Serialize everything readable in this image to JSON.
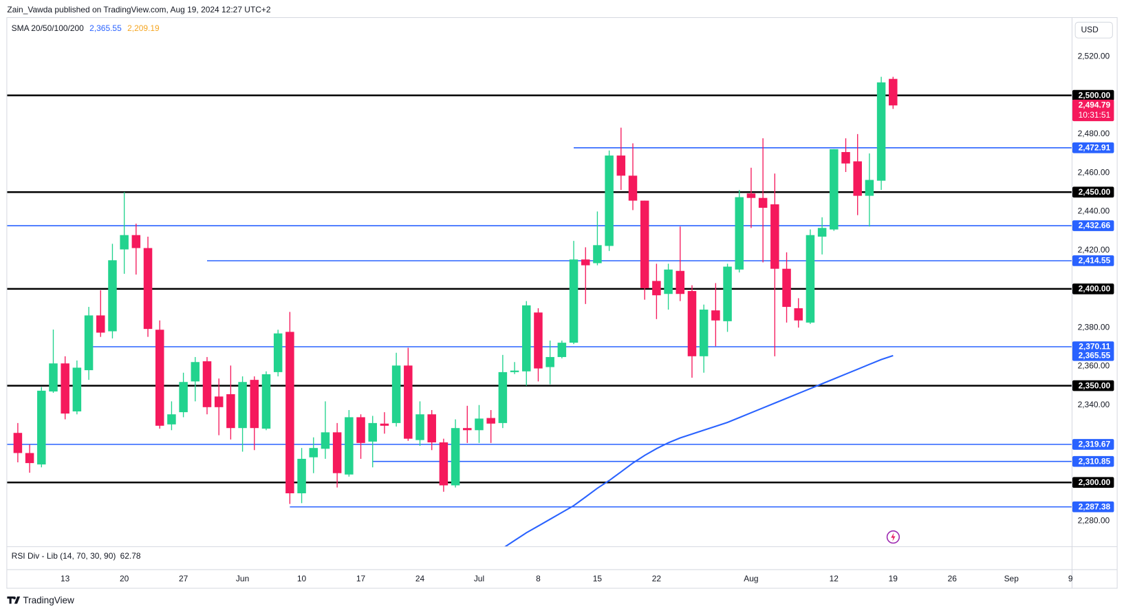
{
  "header": "Zain_Vawda published on TradingView.com, Aug 19, 2024 12:27 UTC+2",
  "footer": "TradingView",
  "chart_data": {
    "type": "candlestick",
    "currency": "USD",
    "up_color": "#22d38e",
    "down_color": "#f5195c",
    "open": [
      2325.6,
      2315.2,
      2309.3,
      2347,
      2361.5,
      2336.7,
      2358,
      2386.3,
      2378.1,
      2420.4,
      2427.8,
      2421.1,
      2378.9,
      2330,
      2336.3,
      2352.2,
      2362.6,
      2344.4,
      2345.6,
      2328.1,
      2353,
      2327.8,
      2357,
      2377.8,
      2294.4,
      2313,
      2317.4,
      2325.9,
      2304.1,
      2333.7,
      2321.1,
      2330.4,
      2330.7,
      2360.4,
      2321.9,
      2335.2,
      2320.7,
      2298.5,
      2328.1,
      2327,
      2333.3,
      2330.7,
      2357,
      2357.4,
      2387.8,
      2359.6,
      2364.8,
      2372.2,
      2415.2,
      2413.3,
      2422.2,
      2468.9,
      2458.5,
      2445.6,
      2404.1,
      2397.4,
      2409.3,
      2398.9,
      2365.2,
      2388.9,
      2383.3,
      2410,
      2449.3,
      2447,
      2443.7,
      2410.4,
      2390,
      2382.6,
      2427,
      2430.7,
      2470.7,
      2465.9,
      2448.1,
      2455.9,
      2508.5
    ],
    "high": [
      2330.7,
      2319.6,
      2349.3,
      2379,
      2365.2,
      2363,
      2390.7,
      2399.3,
      2423.3,
      2450,
      2433.7,
      2427,
      2383.7,
      2341.9,
      2356.7,
      2364.8,
      2364.8,
      2353.7,
      2360.4,
      2354.8,
      2354.8,
      2357.4,
      2378.9,
      2388.1,
      2317.8,
      2323.3,
      2341.9,
      2330.7,
      2337.4,
      2335.2,
      2334.4,
      2336.3,
      2367,
      2369.6,
      2341.9,
      2337.4,
      2322.6,
      2332.6,
      2339.6,
      2340,
      2337.4,
      2365.9,
      2362.2,
      2393.7,
      2390,
      2373.3,
      2373.3,
      2424.8,
      2421.5,
      2440,
      2471.5,
      2483.3,
      2475.2,
      2445.6,
      2413,
      2413,
      2432.2,
      2401.9,
      2391.9,
      2403,
      2413,
      2451.1,
      2462.6,
      2477.8,
      2459.6,
      2418.9,
      2395.2,
      2430.7,
      2437,
      2472.2,
      2477.8,
      2480,
      2470,
      2509.6,
      2509.6
    ],
    "low": [
      2310.4,
      2305,
      2307.8,
      2346.3,
      2332.6,
      2335.2,
      2353,
      2375.2,
      2374.4,
      2407.8,
      2407.4,
      2375.2,
      2327.8,
      2327,
      2333.7,
      2341.9,
      2335.2,
      2324.4,
      2322.2,
      2315.9,
      2316.7,
      2327,
      2354.8,
      2288.9,
      2289.3,
      2304.8,
      2312.2,
      2297.4,
      2303,
      2312.2,
      2307.8,
      2325.2,
      2328.9,
      2321.5,
      2318.9,
      2316.7,
      2295.2,
      2297.4,
      2320.4,
      2320.4,
      2320.4,
      2328.1,
      2356,
      2350,
      2352.2,
      2350.7,
      2364.1,
      2371.5,
      2392.2,
      2412.2,
      2419.6,
      2451.1,
      2440.7,
      2394.4,
      2384.4,
      2389.3,
      2393.7,
      2354.1,
      2356.7,
      2370.4,
      2377.8,
      2408.5,
      2431.5,
      2413.7,
      2365.2,
      2382.6,
      2380,
      2381.9,
      2417.8,
      2430,
      2460.4,
      2438.1,
      2432.2,
      2451.1,
      2493
    ],
    "close": [
      2315.2,
      2310,
      2347.4,
      2361.5,
      2335.6,
      2359.3,
      2386.3,
      2377.4,
      2414.8,
      2427.8,
      2421.1,
      2379.3,
      2329.3,
      2335.2,
      2351.9,
      2362.2,
      2338.9,
      2338.9,
      2328.1,
      2351.9,
      2328.1,
      2355.9,
      2377,
      2294.4,
      2312.2,
      2317.8,
      2325.9,
      2304.8,
      2333.7,
      2320.4,
      2330.7,
      2329.3,
      2360.4,
      2322.6,
      2335.2,
      2320.7,
      2298.5,
      2328.1,
      2327,
      2333,
      2330.4,
      2357,
      2357.8,
      2391.5,
      2358.9,
      2364.8,
      2372.2,
      2415.2,
      2412.2,
      2422.6,
      2468.9,
      2458.5,
      2445.6,
      2400.4,
      2396.7,
      2410,
      2397.4,
      2365.2,
      2389.3,
      2383.7,
      2411.5,
      2447.4,
      2447,
      2441.9,
      2410.4,
      2390.7,
      2383.7,
      2427.8,
      2431.5,
      2472.2,
      2464.8,
      2448.1,
      2456.3,
      2506.7,
      2494.79
    ],
    "xlim": [
      -0.9,
      89.1
    ],
    "xticks": [
      {
        "value": 4,
        "label": "13"
      },
      {
        "value": 9,
        "label": "20"
      },
      {
        "value": 14,
        "label": "27"
      },
      {
        "value": 19,
        "label": "Jun"
      },
      {
        "value": 24,
        "label": "10"
      },
      {
        "value": 29,
        "label": "17"
      },
      {
        "value": 34,
        "label": "24"
      },
      {
        "value": 39,
        "label": "Jul"
      },
      {
        "value": 44,
        "label": "8"
      },
      {
        "value": 49,
        "label": "15"
      },
      {
        "value": 54,
        "label": "22"
      },
      {
        "value": 62,
        "label": "Aug"
      },
      {
        "value": 69,
        "label": "12"
      },
      {
        "value": 74,
        "label": "19"
      },
      {
        "value": 79,
        "label": "26"
      },
      {
        "value": 84,
        "label": "Sep"
      },
      {
        "value": 89,
        "label": "9"
      }
    ],
    "ylim": [
      2267,
      2540
    ],
    "yticks": [
      {
        "value": 2280,
        "label": "2,280.00"
      },
      {
        "value": 2300,
        "label": "2,300.00"
      },
      {
        "value": 2320,
        "label": "2,320.00"
      },
      {
        "value": 2340,
        "label": "2,340.00"
      },
      {
        "value": 2360,
        "label": "2,360.00"
      },
      {
        "value": 2380,
        "label": "2,380.00"
      },
      {
        "value": 2400,
        "label": "2,400.00"
      },
      {
        "value": 2420,
        "label": "2,420.00"
      },
      {
        "value": 2440,
        "label": "2,440.00"
      },
      {
        "value": 2460,
        "label": "2,460.00"
      },
      {
        "value": 2480,
        "label": "2,480.00"
      },
      {
        "value": 2500,
        "label": "2,500.00"
      },
      {
        "value": 2520,
        "label": "2,520.00"
      }
    ],
    "grid": false,
    "levels": [
      {
        "value": 2500,
        "label": "2,500.00",
        "color": "#000000"
      },
      {
        "value": 2472.91,
        "label": "2,472.91",
        "color": "#2962ff",
        "from": 47
      },
      {
        "value": 2450,
        "label": "2,450.00",
        "color": "#000000"
      },
      {
        "value": 2432.66,
        "label": "2,432.66",
        "color": "#2962ff"
      },
      {
        "value": 2414.55,
        "label": "2,414.55",
        "color": "#2962ff",
        "from": 16
      },
      {
        "value": 2400,
        "label": "2,400.00",
        "color": "#000000"
      },
      {
        "value": 2370.11,
        "label": "2,370.11",
        "color": "#2962ff",
        "from": 6
      },
      {
        "value": 2350,
        "label": "2,350.00",
        "color": "#000000"
      },
      {
        "value": 2319.67,
        "label": "2,319.67",
        "color": "#2962ff"
      },
      {
        "value": 2310.85,
        "label": "2,310.85",
        "color": "#2962ff",
        "from": 30
      },
      {
        "value": 2300,
        "label": "2,300.00",
        "color": "#000000"
      },
      {
        "value": 2287.38,
        "label": "2,287.38",
        "color": "#2962ff",
        "from": 23
      }
    ],
    "indicator": {
      "name": "SMA 20/50/100/200",
      "lines": [
        {
          "color": "#2962ff",
          "value_label": "2,365.55",
          "values": [
            null,
            null,
            null,
            null,
            null,
            null,
            null,
            null,
            null,
            null,
            null,
            null,
            null,
            null,
            null,
            null,
            null,
            null,
            null,
            null,
            null,
            null,
            null,
            null,
            null,
            null,
            null,
            null,
            null,
            null,
            null,
            null,
            null,
            null,
            null,
            null,
            null,
            null,
            null,
            null,
            null,
            2266,
            2270,
            2274,
            2277.5,
            2281,
            2284.5,
            2288,
            2292.5,
            2297,
            2301,
            2305.5,
            2310,
            2314,
            2317.5,
            2320.5,
            2323,
            2325,
            2327,
            2329,
            2331,
            2333.5,
            2336,
            2338.5,
            2341,
            2343.5,
            2346,
            2348.5,
            2351,
            2353.5,
            2356,
            2358.5,
            2361,
            2363.5,
            2365.55
          ]
        },
        {
          "color": "#f5a623",
          "value_label": "2,209.19"
        }
      ]
    },
    "last_price": {
      "value": 2494.79,
      "label": "2,494.79",
      "countdown": "10:31:51"
    },
    "rsi": {
      "name": "RSI Div - Lib (14, 70, 30, 90)",
      "value": 62.78
    }
  }
}
